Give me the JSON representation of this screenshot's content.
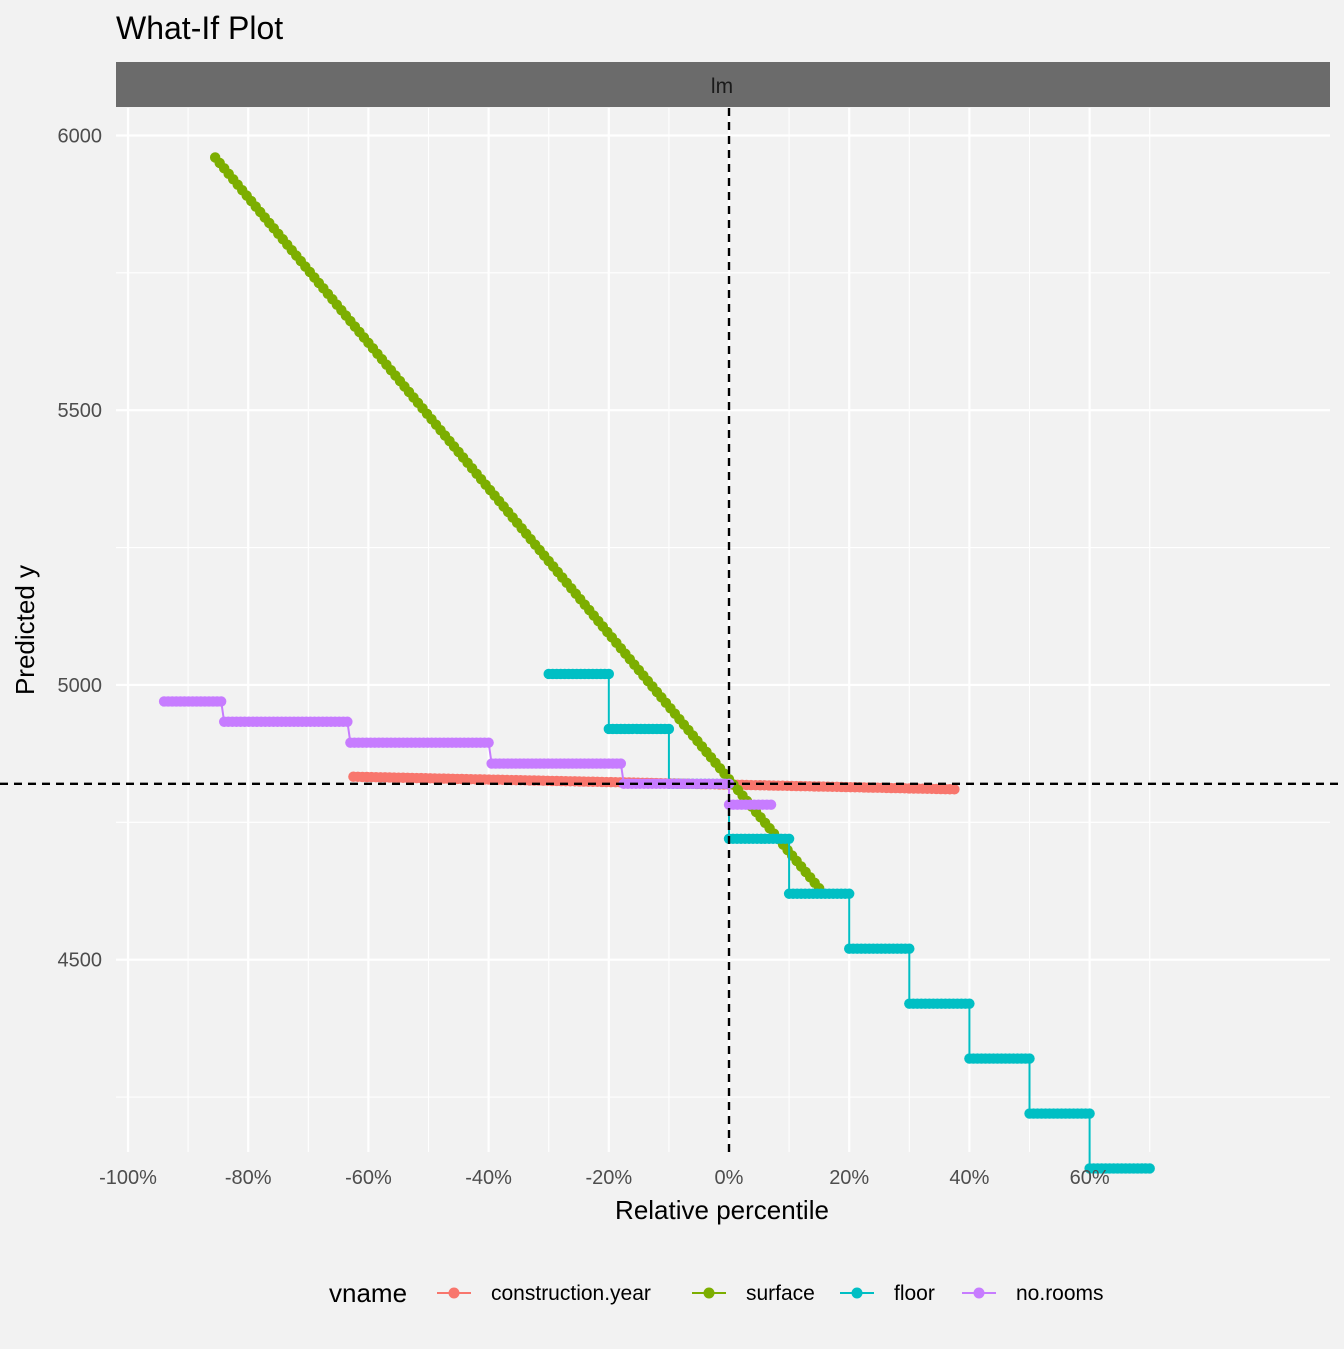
{
  "chart_data": {
    "type": "line",
    "title": "What-If Plot",
    "facet_label": "lm",
    "xlabel": "Relative percentile",
    "ylabel": "Predicted y",
    "xlim": [
      -1.02,
      1.0
    ],
    "ylim": [
      4150,
      6050
    ],
    "x_ticks": [
      -1.0,
      -0.8,
      -0.6,
      -0.4,
      -0.2,
      0.0,
      0.2,
      0.4,
      0.6
    ],
    "x_tick_labels": [
      "-100%",
      "-80%",
      "-60%",
      "-40%",
      "-20%",
      "0%",
      "20%",
      "40%",
      "60%"
    ],
    "y_ticks": [
      4500,
      5000,
      5500,
      6000
    ],
    "y_tick_labels": [
      "4500",
      "5000",
      "5500",
      "6000"
    ],
    "reference_lines": {
      "x": 0.0,
      "y": 4820
    },
    "grid": true,
    "legend": {
      "title": "vname",
      "position": "bottom"
    },
    "series": [
      {
        "name": "construction.year",
        "color": "#F8766D",
        "shape": "line",
        "x": [
          -0.625,
          0.375
        ],
        "y": [
          4833,
          4810
        ]
      },
      {
        "name": "surface",
        "color": "#7CAE00",
        "shape": "line",
        "x": [
          -0.855,
          0.15
        ],
        "y": [
          5960,
          4630
        ]
      },
      {
        "name": "floor",
        "color": "#00BFC4",
        "shape": "step",
        "segments": [
          [
            -0.3,
            -0.2,
            5020
          ],
          [
            -0.2,
            -0.1,
            4920
          ],
          [
            -0.1,
            0.0,
            4820
          ],
          [
            0.0,
            0.1,
            4720
          ],
          [
            0.1,
            0.2,
            4620
          ],
          [
            0.2,
            0.3,
            4520
          ],
          [
            0.3,
            0.4,
            4420
          ],
          [
            0.4,
            0.5,
            4320
          ],
          [
            0.5,
            0.6,
            4220
          ],
          [
            0.6,
            0.7,
            4120
          ]
        ]
      },
      {
        "name": "no.rooms",
        "color": "#C77CFF",
        "shape": "step",
        "segments": [
          [
            -0.94,
            -0.845,
            4970
          ],
          [
            -0.84,
            -0.635,
            4933
          ],
          [
            -0.63,
            -0.4,
            4895
          ],
          [
            -0.395,
            -0.18,
            4857
          ],
          [
            -0.175,
            0.0,
            4820
          ],
          [
            0.0,
            0.07,
            4782
          ]
        ]
      }
    ]
  }
}
